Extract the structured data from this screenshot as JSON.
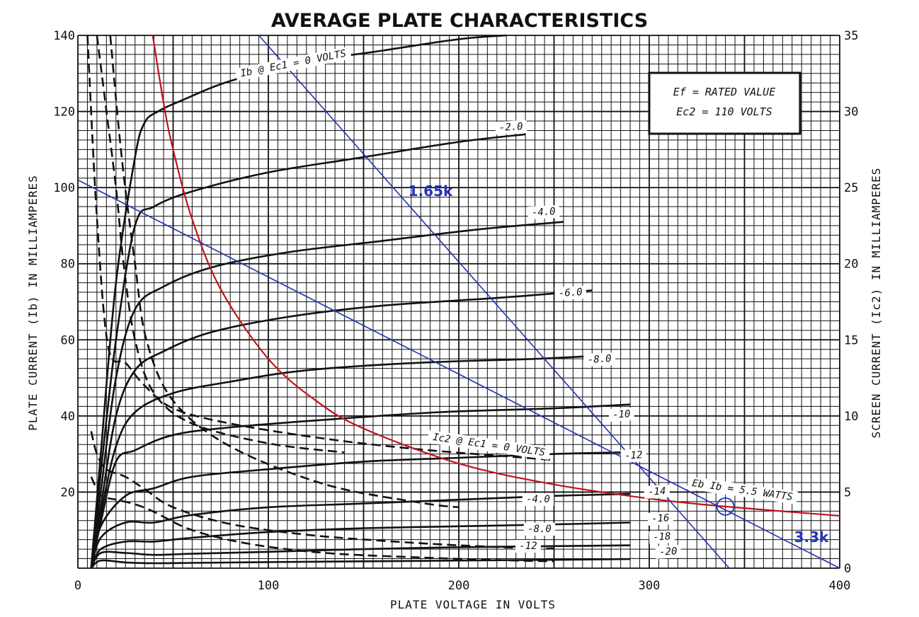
{
  "chart_data": {
    "type": "line",
    "title": "AVERAGE PLATE CHARACTERISTICS",
    "xlabel": "PLATE VOLTAGE IN VOLTS",
    "ylabel": "PLATE CURRENT (Ib) IN MILLIAMPERES",
    "y2label": "SCREEN CURRENT (Ic2) IN MILLIAMPERES",
    "xlim": [
      0,
      400
    ],
    "ylim": [
      0,
      140
    ],
    "y2lim": [
      0,
      35
    ],
    "grid": true,
    "x_ticks": [
      "0",
      "100",
      "200",
      "300",
      "400"
    ],
    "y_ticks": [
      "20",
      "40",
      "60",
      "80",
      "100",
      "120",
      "140"
    ],
    "y2_ticks": [
      "0",
      "5",
      "10",
      "15",
      "20",
      "25",
      "30",
      "35"
    ],
    "conditions": [
      "Ef = RATED VALUE",
      "Ec2 = 110 VOLTS"
    ],
    "plate_curves": [
      {
        "label": "Ib @ Ec1 = 0 VOLTS",
        "x": [
          7,
          12,
          20,
          30,
          35,
          42,
          55,
          80,
          120,
          160,
          200,
          225
        ],
        "y": [
          0,
          30,
          75,
          108,
          117,
          120,
          123,
          128,
          133,
          136,
          139,
          140
        ]
      },
      {
        "label": "-2.0",
        "x": [
          7,
          12,
          20,
          30,
          40,
          60,
          100,
          150,
          200,
          235
        ],
        "y": [
          0,
          25,
          60,
          90,
          95,
          99,
          104,
          108,
          112,
          114
        ]
      },
      {
        "label": "-4.0",
        "x": [
          7,
          12,
          20,
          30,
          45,
          70,
          110,
          160,
          210,
          255
        ],
        "y": [
          0,
          20,
          50,
          68,
          74,
          79,
          83,
          86,
          89,
          91
        ]
      },
      {
        "label": "-6.0",
        "x": [
          7,
          12,
          20,
          30,
          45,
          70,
          110,
          160,
          220,
          270
        ],
        "y": [
          0,
          16,
          40,
          52,
          57,
          62,
          66,
          69,
          71,
          73
        ]
      },
      {
        "label": "-8.0",
        "x": [
          7,
          12,
          20,
          30,
          50,
          80,
          120,
          180,
          240,
          280
        ],
        "y": [
          0,
          14,
          32,
          41,
          46,
          49,
          52,
          54,
          55,
          56
        ]
      },
      {
        "label": "-10",
        "x": [
          7,
          12,
          20,
          30,
          50,
          80,
          130,
          190,
          250,
          290
        ],
        "y": [
          0,
          12,
          28,
          31,
          35,
          37,
          39,
          41,
          42,
          43
        ]
      },
      {
        "label": "-12",
        "x": [
          7,
          12,
          25,
          40,
          60,
          100,
          150,
          200,
          250,
          290
        ],
        "y": [
          0,
          11,
          19,
          21,
          24,
          26,
          28,
          29,
          30,
          30.5
        ]
      },
      {
        "label": "-14",
        "x": [
          7,
          12,
          25,
          40,
          60,
          100,
          150,
          200,
          250,
          290
        ],
        "y": [
          0,
          8,
          12,
          12,
          14,
          16,
          17,
          18,
          19,
          19.5
        ]
      },
      {
        "label": "-16",
        "x": [
          7,
          12,
          25,
          40,
          60,
          100,
          150,
          200,
          250,
          290
        ],
        "y": [
          0,
          5,
          7,
          7,
          8,
          9.5,
          10.5,
          11,
          11.5,
          12
        ]
      },
      {
        "label": "-18",
        "x": [
          7,
          12,
          25,
          40,
          60,
          100,
          150,
          200,
          250,
          290
        ],
        "y": [
          0,
          4,
          4,
          3.5,
          3.8,
          4.3,
          5,
          5.5,
          5.8,
          6
        ]
      },
      {
        "label": "-20",
        "x": [
          7,
          12,
          25,
          40,
          60,
          100,
          150,
          200,
          250,
          290
        ],
        "y": [
          0,
          2,
          1.5,
          1.3,
          1.4,
          1.6,
          1.8,
          2,
          2.2,
          2.4
        ]
      }
    ],
    "screen_curves": [
      {
        "label": "Ic2 @ Ec1 = 0 VOLTS",
        "x": [
          5,
          10,
          16,
          25,
          35,
          50,
          80,
          130,
          180,
          230,
          250
        ],
        "y": [
          35,
          23,
          14.5,
          13.5,
          12,
          10.5,
          9.5,
          8.5,
          7.8,
          7.3,
          7.1
        ]
      },
      {
        "label": "-2.0",
        "x": [
          10,
          14,
          20,
          24,
          30,
          40,
          60,
          100,
          140
        ],
        "y": [
          35,
          31,
          25,
          20,
          15,
          11.5,
          9.5,
          8.2,
          7.6
        ]
      },
      {
        "label": "-4.0",
        "x": [
          17,
          23,
          30,
          36,
          50,
          80,
          130,
          180,
          200
        ],
        "y": [
          35,
          27,
          20,
          15,
          11,
          8,
          5.5,
          4.3,
          4
        ]
      },
      {
        "label": "-8.0",
        "x": [
          7,
          10,
          15,
          25,
          35,
          50,
          80,
          120,
          160,
          200,
          240,
          250
        ],
        "y": [
          9,
          7.5,
          6.5,
          6,
          5.2,
          4,
          2.9,
          2.2,
          1.8,
          1.5,
          1.3,
          1.3
        ]
      },
      {
        "label": "-12",
        "x": [
          7,
          12,
          20,
          30,
          40,
          60,
          90,
          130,
          180,
          230,
          250
        ],
        "y": [
          6,
          4.8,
          4.5,
          4.2,
          3.7,
          2.5,
          1.6,
          1,
          0.7,
          0.5,
          0.45
        ]
      }
    ],
    "power_curve": {
      "label": "Eb Ib = 5.5 WATTS",
      "x": [
        39.3,
        45,
        50,
        60,
        75,
        100,
        125,
        150,
        200,
        250,
        300,
        340,
        400
      ],
      "y": [
        140,
        122.2,
        110,
        91.7,
        73.3,
        55,
        44,
        36.7,
        27.5,
        22,
        18.3,
        16.2,
        13.75
      ]
    },
    "load_lines": [
      {
        "label": "1.65k",
        "x": [
          95,
          342
        ],
        "y": [
          140,
          0
        ]
      },
      {
        "label": "3.3k",
        "x": [
          0,
          400
        ],
        "y": [
          102,
          0
        ]
      }
    ],
    "operating_point": {
      "x": 340,
      "y": 16.2
    },
    "curve_label_texts": [
      "Ib @ Ec1 = 0 VOLTS",
      "-2.0",
      "-4.0",
      "-6.0",
      "-8.0",
      "-10",
      "-12",
      "-14",
      "-16",
      "-18",
      "-20",
      "Ic2 @ Ec1 = 0 VOLTS",
      "-4.0",
      "-8.0",
      "-12",
      "Eb Ib = 5.5 WATTS"
    ],
    "colors": {
      "power_curve": "#c0141c",
      "load_lines": "#2433b8",
      "curves": "#111111"
    }
  }
}
